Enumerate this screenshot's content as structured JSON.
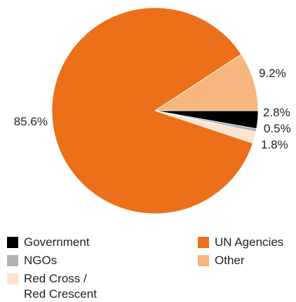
{
  "chart_data": {
    "type": "pie",
    "slices": [
      {
        "name": "Government",
        "value": 2.8,
        "label": "2.8%",
        "color": "#000000"
      },
      {
        "name": "NGOs",
        "value": 0.5,
        "label": "0.5%",
        "color": "#b2b2b2"
      },
      {
        "name": "Red Cross / Red Crescent",
        "value": 1.8,
        "label": "1.8%",
        "color": "#fde4d0"
      },
      {
        "name": "UN Agencies",
        "value": 85.6,
        "label": "85.6%",
        "color": "#ec6f1a"
      },
      {
        "name": "Other",
        "value": 9.2,
        "label": "9.2%",
        "color": "#f7b57f"
      }
    ]
  },
  "legend": {
    "government": "Government",
    "ngos": "NGOs",
    "red_cross": "Red Cross /\nRed Crescent",
    "un_agencies": "UN Agencies",
    "other": "Other"
  }
}
